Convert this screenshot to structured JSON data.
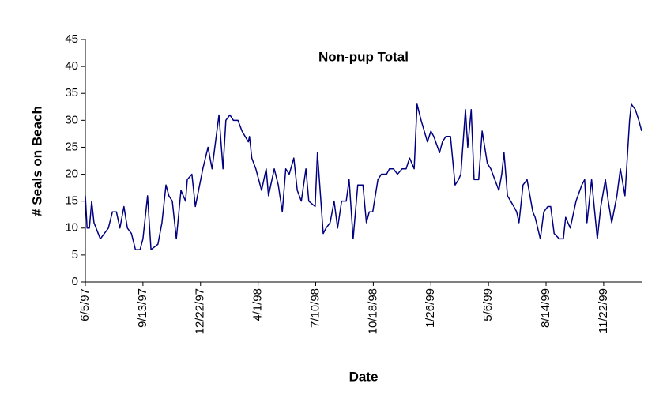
{
  "chart_data": {
    "type": "line",
    "title": "Non-pup Total",
    "x_label": "Date",
    "y_label": "# Seals on Beach",
    "xlim": [
      "6/5/97",
      "1/27/00"
    ],
    "xticks": [
      "6/5/97",
      "9/13/97",
      "12/22/97",
      "4/1/98",
      "7/10/98",
      "10/18/98",
      "1/26/99",
      "5/6/99",
      "8/14/99",
      "11/22/99"
    ],
    "ylim": [
      0,
      45
    ],
    "yticks": [
      0,
      5,
      10,
      15,
      20,
      25,
      30,
      35,
      40,
      45
    ],
    "series": [
      {
        "name": "Non-pup Total",
        "color": "#000080",
        "x": [
          "6/5/97",
          "6/8/97",
          "6/12/97",
          "6/16/97",
          "6/20/97",
          "7/1/97",
          "7/15/97",
          "7/22/97",
          "7/29/97",
          "8/4/97",
          "8/11/97",
          "8/17/97",
          "8/24/97",
          "8/31/97",
          "9/8/97",
          "9/13/97",
          "9/21/97",
          "9/27/97",
          "10/9/97",
          "10/16/97",
          "10/23/97",
          "10/28/97",
          "11/3/97",
          "11/10/97",
          "11/18/97",
          "11/26/97",
          "11/29/97",
          "12/7/97",
          "12/13/97",
          "12/26/97",
          "1/4/98",
          "1/11/98",
          "1/23/98",
          "1/30/98",
          "2/4/98",
          "2/11/98",
          "2/17/98",
          "2/25/98",
          "3/4/98",
          "3/15/98",
          "3/17/98",
          "3/21/98",
          "3/28/98",
          "4/7/98",
          "4/15/98",
          "4/19/98",
          "4/29/98",
          "5/6/98",
          "5/13/98",
          "5/19/98",
          "5/25/98",
          "6/2/98",
          "6/8/98",
          "6/15/98",
          "6/23/98",
          "6/28/98",
          "7/9/98",
          "7/13/98",
          "7/23/98",
          "7/28/98",
          "8/4/98",
          "8/11/98",
          "8/17/98",
          "8/24/98",
          "9/1/98",
          "9/6/98",
          "9/13/98",
          "9/21/98",
          "9/30/98",
          "10/6/98",
          "10/11/98",
          "10/17/98",
          "10/26/98",
          "11/1/98",
          "11/10/98",
          "11/15/98",
          "11/22/98",
          "11/29/98",
          "12/7/98",
          "12/14/98",
          "12/20/98",
          "12/28/98",
          "1/2/99",
          "1/9/99",
          "1/20/99",
          "1/26/99",
          "1/31/99",
          "2/10/99",
          "2/15/99",
          "2/21/99",
          "3/1/99",
          "3/9/99",
          "3/15/99",
          "3/19/99",
          "3/27/99",
          "3/31/99",
          "4/6/99",
          "4/11/99",
          "4/19/99",
          "4/25/99",
          "5/4/99",
          "5/10/99",
          "5/17/99",
          "5/24/99",
          "5/29/99",
          "6/2/99",
          "6/8/99",
          "6/19/99",
          "6/24/99",
          "6/28/99",
          "7/5/99",
          "7/12/99",
          "7/22/99",
          "7/26/99",
          "8/4/99",
          "8/10/99",
          "8/17/99",
          "8/22/99",
          "8/28/99",
          "9/6/99",
          "9/13/99",
          "9/17/99",
          "9/25/99",
          "10/5/99",
          "10/15/99",
          "10/20/99",
          "10/24/99",
          "11/1/99",
          "11/11/99",
          "11/17/99",
          "11/25/99",
          "11/30/99",
          "12/6/99",
          "12/15/99",
          "12/21/99",
          "12/29/99",
          "1/6/00",
          "1/9/00",
          "1/16/00",
          "1/22/00",
          "1/27/00"
        ],
        "values": [
          16,
          10,
          10,
          15,
          11,
          8,
          10,
          13,
          13,
          10,
          14,
          10,
          9,
          6,
          6,
          8,
          16,
          6,
          7,
          11,
          18,
          16,
          15,
          8,
          17,
          15,
          19,
          20,
          14,
          21,
          25,
          21,
          31,
          21,
          30,
          31,
          30,
          30,
          28,
          26,
          27,
          23,
          21,
          17,
          21,
          16,
          21,
          18,
          13,
          21,
          20,
          23,
          17,
          15,
          21,
          15,
          14,
          24,
          9,
          10,
          11,
          15,
          10,
          15,
          15,
          19,
          8,
          18,
          18,
          11,
          13,
          13,
          19,
          20,
          20,
          21,
          21,
          20,
          21,
          21,
          23,
          21,
          33,
          30,
          26,
          28,
          27,
          24,
          26,
          27,
          27,
          18,
          19,
          20,
          32,
          25,
          32,
          19,
          19,
          28,
          22,
          21,
          19,
          17,
          20,
          24,
          16,
          14,
          13,
          11,
          18,
          19,
          13,
          12,
          8,
          13,
          14,
          14,
          9,
          8,
          8,
          12,
          10,
          15,
          18,
          19,
          11,
          19,
          8,
          14,
          19,
          15,
          11,
          16,
          21,
          16,
          30,
          33,
          32,
          30,
          28
        ]
      }
    ]
  }
}
